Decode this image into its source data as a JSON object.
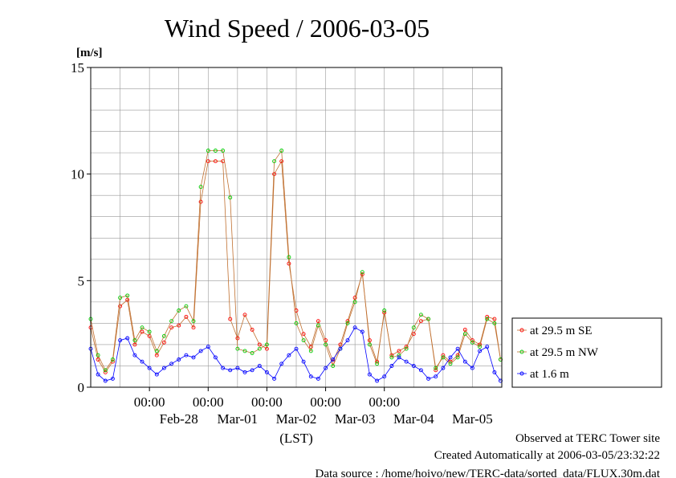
{
  "chart_data": {
    "type": "line",
    "title": "Wind Speed / 2006-03-05",
    "ylabel": "[m/s]",
    "xlabel": "(LST)",
    "ylim": [
      0,
      15
    ],
    "yticks": [
      0,
      5,
      10,
      15
    ],
    "xrange": [
      "2006-02-27 00:00",
      "2006-03-06 00:00"
    ],
    "time_ticks": [
      {
        "time": "2006-02-28 00:00",
        "label": "00:00"
      },
      {
        "time": "2006-03-01 00:00",
        "label": "00:00"
      },
      {
        "time": "2006-03-02 00:00",
        "label": "00:00"
      },
      {
        "time": "2006-03-03 00:00",
        "label": "00:00"
      },
      {
        "time": "2006-03-04 00:00",
        "label": "00:00"
      }
    ],
    "day_labels": [
      {
        "time": "2006-02-28 12:00",
        "label": "Feb-28"
      },
      {
        "time": "2006-03-01 12:00",
        "label": "Mar-01"
      },
      {
        "time": "2006-03-02 12:00",
        "label": "Mar-02"
      },
      {
        "time": "2006-03-03 12:00",
        "label": "Mar-03"
      },
      {
        "time": "2006-03-04 12:00",
        "label": "Mar-04"
      },
      {
        "time": "2006-03-05 12:00",
        "label": "Mar-05"
      }
    ],
    "grid": true,
    "legend_position": "right",
    "x": [
      "2006-02-27 00:00",
      "2006-02-27 03:00",
      "2006-02-27 06:00",
      "2006-02-27 09:00",
      "2006-02-27 12:00",
      "2006-02-27 15:00",
      "2006-02-27 18:00",
      "2006-02-27 21:00",
      "2006-02-28 00:00",
      "2006-02-28 03:00",
      "2006-02-28 06:00",
      "2006-02-28 09:00",
      "2006-02-28 12:00",
      "2006-02-28 15:00",
      "2006-02-28 18:00",
      "2006-02-28 21:00",
      "2006-03-01 00:00",
      "2006-03-01 03:00",
      "2006-03-01 06:00",
      "2006-03-01 09:00",
      "2006-03-01 12:00",
      "2006-03-01 15:00",
      "2006-03-01 18:00",
      "2006-03-01 21:00",
      "2006-03-02 00:00",
      "2006-03-02 03:00",
      "2006-03-02 06:00",
      "2006-03-02 09:00",
      "2006-03-02 12:00",
      "2006-03-02 15:00",
      "2006-03-02 18:00",
      "2006-03-02 21:00",
      "2006-03-03 00:00",
      "2006-03-03 03:00",
      "2006-03-03 06:00",
      "2006-03-03 09:00",
      "2006-03-03 12:00",
      "2006-03-03 15:00",
      "2006-03-03 18:00",
      "2006-03-03 21:00",
      "2006-03-04 00:00",
      "2006-03-04 03:00",
      "2006-03-04 06:00",
      "2006-03-04 09:00",
      "2006-03-04 12:00",
      "2006-03-04 15:00",
      "2006-03-04 18:00",
      "2006-03-04 21:00",
      "2006-03-05 00:00",
      "2006-03-05 03:00",
      "2006-03-05 06:00",
      "2006-03-05 09:00",
      "2006-03-05 12:00",
      "2006-03-05 15:00",
      "2006-03-05 18:00",
      "2006-03-05 21:00",
      "2006-03-05 23:30"
    ],
    "series": [
      {
        "name": "at 29.5 m SE",
        "color": "#ff0000",
        "line_color": "#c07030",
        "values": [
          2.8,
          1.3,
          0.7,
          1.2,
          3.8,
          4.1,
          2.0,
          2.6,
          2.4,
          1.5,
          2.1,
          2.8,
          2.9,
          3.3,
          2.8,
          8.7,
          10.6,
          10.6,
          10.6,
          3.2,
          2.3,
          3.4,
          2.7,
          2.0,
          1.8,
          10.0,
          10.6,
          5.8,
          3.6,
          2.5,
          1.9,
          3.1,
          2.2,
          1.2,
          2.0,
          3.1,
          4.2,
          5.3,
          2.2,
          1.2,
          3.5,
          1.5,
          1.7,
          1.9,
          2.5,
          3.1,
          3.2,
          0.8,
          1.5,
          1.2,
          1.5,
          2.7,
          2.2,
          2.0,
          3.3,
          3.2,
          1.3
        ]
      },
      {
        "name": "at 29.5 m NW",
        "color": "#00cc00",
        "line_color": "#c07030",
        "values": [
          3.2,
          1.5,
          0.8,
          1.3,
          4.2,
          4.3,
          2.2,
          2.8,
          2.6,
          1.7,
          2.4,
          3.1,
          3.6,
          3.8,
          3.1,
          9.4,
          11.1,
          11.1,
          11.1,
          8.9,
          1.8,
          1.7,
          1.6,
          1.8,
          2.0,
          10.6,
          11.1,
          6.1,
          3.0,
          2.2,
          1.7,
          2.9,
          2.0,
          1.0,
          1.8,
          3.0,
          4.0,
          5.4,
          2.0,
          1.1,
          3.6,
          1.4,
          1.5,
          1.8,
          2.8,
          3.4,
          3.2,
          0.9,
          1.4,
          1.1,
          1.4,
          2.5,
          2.1,
          1.9,
          3.2,
          3.0,
          1.3
        ]
      },
      {
        "name": "at 1.6 m",
        "color": "#0000ff",
        "line_color": "#0000ff",
        "values": [
          1.8,
          0.6,
          0.3,
          0.4,
          2.2,
          2.3,
          1.5,
          1.2,
          0.9,
          0.6,
          0.9,
          1.1,
          1.3,
          1.5,
          1.4,
          1.7,
          1.9,
          1.4,
          0.9,
          0.8,
          0.9,
          0.7,
          0.8,
          1.0,
          0.7,
          0.4,
          1.1,
          1.5,
          1.8,
          1.2,
          0.5,
          0.4,
          0.9,
          1.3,
          1.8,
          2.2,
          2.8,
          2.6,
          0.6,
          0.3,
          0.5,
          1.0,
          1.4,
          1.2,
          1.0,
          0.8,
          0.4,
          0.5,
          0.9,
          1.4,
          1.8,
          1.2,
          0.9,
          1.7,
          1.9,
          0.7,
          0.3
        ]
      }
    ]
  },
  "footer": {
    "site": "Observed at TERC Tower site",
    "created": "Created Automatically at 2006-03-05/23:32:22",
    "source": "Data source : /home/hoivo/new/TERC-data/sorted_data/FLUX.30m.dat"
  }
}
